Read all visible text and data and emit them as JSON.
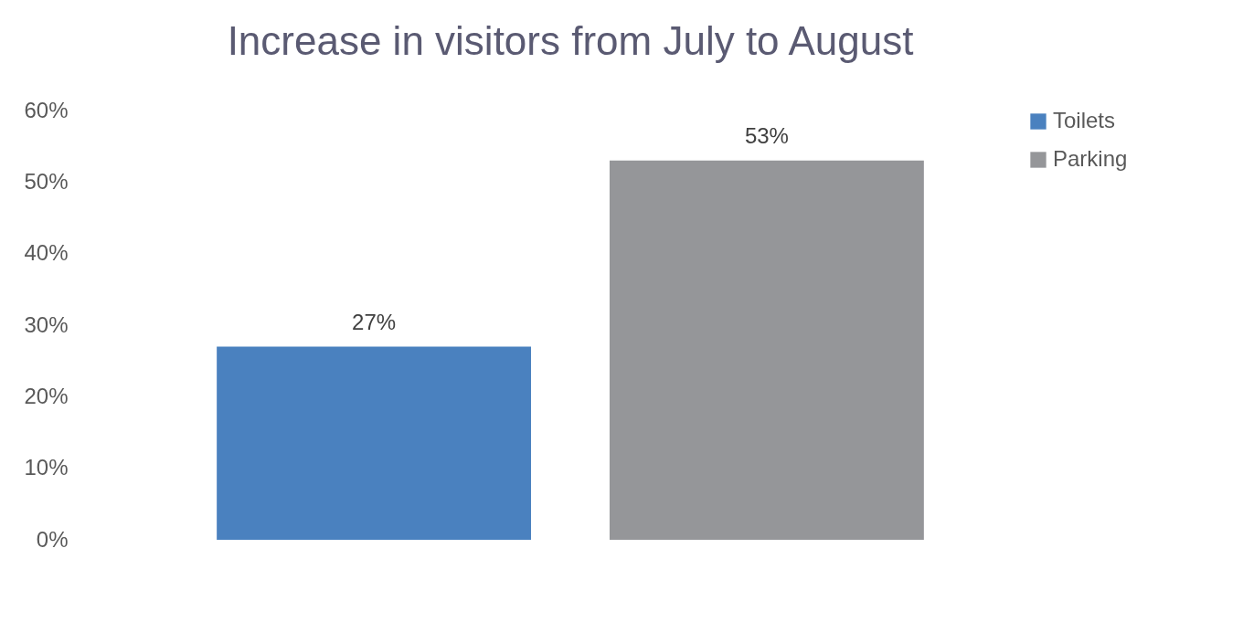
{
  "chart_data": {
    "type": "bar",
    "title": "Increase in visitors from July to August",
    "categories": [
      null
    ],
    "series": [
      {
        "name": "Toilets",
        "color": "#4a81bf",
        "values": [
          27
        ],
        "value_labels": [
          "27%"
        ]
      },
      {
        "name": "Parking",
        "color": "#959699",
        "values": [
          53
        ],
        "value_labels": [
          "53%"
        ]
      }
    ],
    "ylim": [
      0,
      60
    ],
    "yticks": [
      {
        "value": 0,
        "label": "0%"
      },
      {
        "value": 10,
        "label": "10%"
      },
      {
        "value": 20,
        "label": "20%"
      },
      {
        "value": 30,
        "label": "30%"
      },
      {
        "value": 40,
        "label": "40%"
      },
      {
        "value": 50,
        "label": "50%"
      },
      {
        "value": 60,
        "label": "60%"
      }
    ],
    "grid": false,
    "legend": "top right"
  }
}
